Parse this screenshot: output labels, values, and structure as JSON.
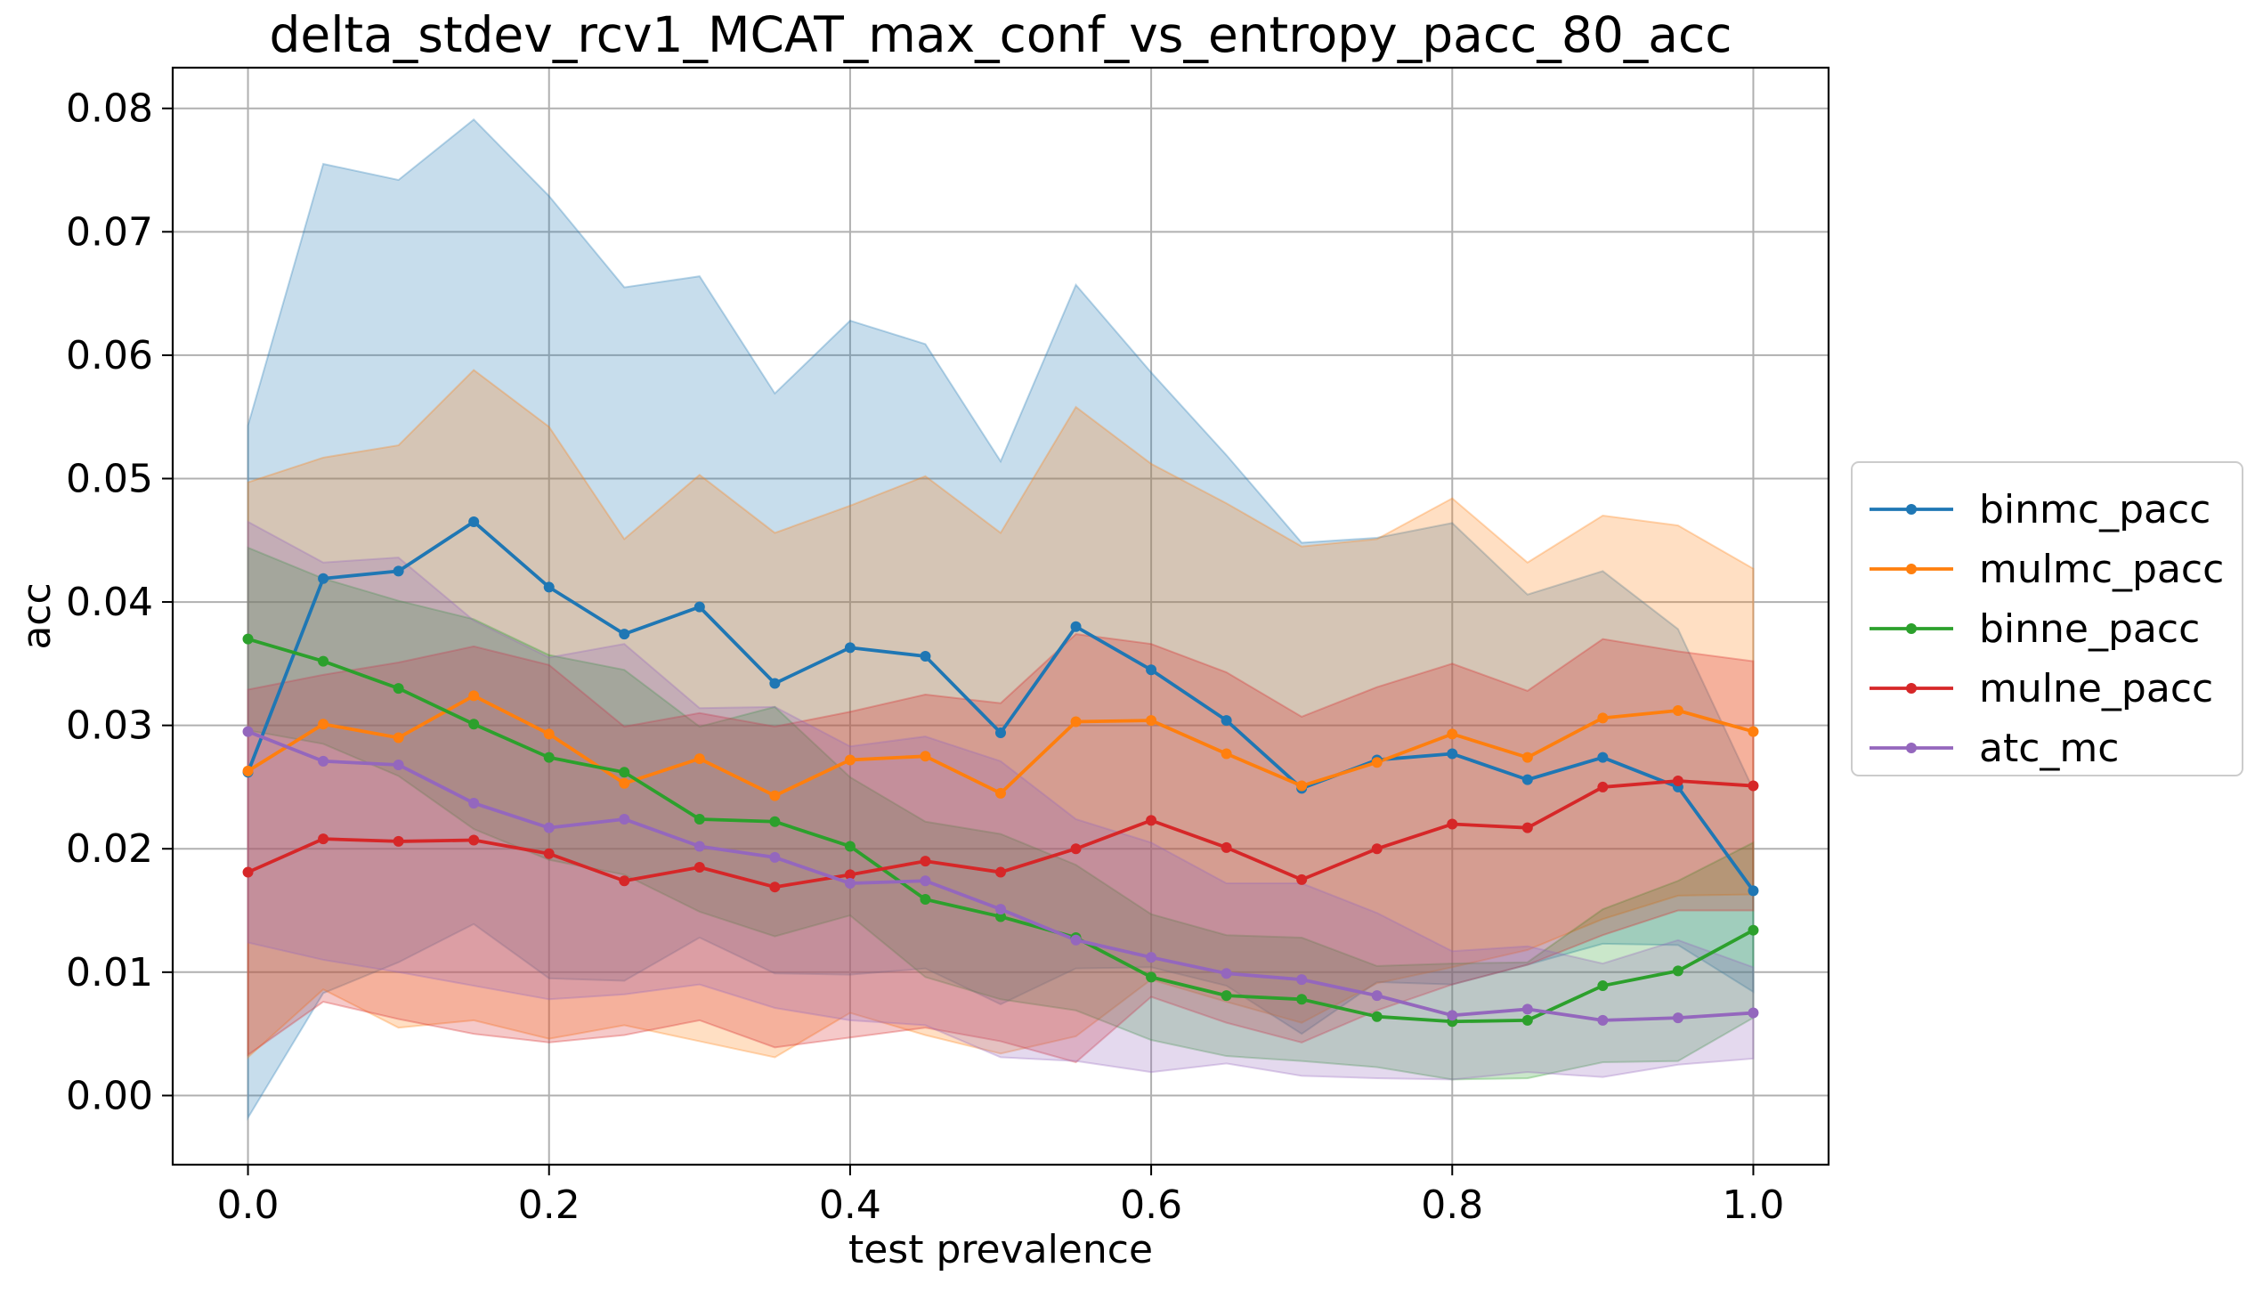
{
  "chart_data": {
    "type": "line",
    "title": "delta_stdev_rcv1_MCAT_max_conf_vs_entropy_pacc_80_acc",
    "xlabel": "test prevalence",
    "ylabel": "acc",
    "xlim": [
      -0.05,
      1.05
    ],
    "ylim": [
      -0.0056,
      0.0833
    ],
    "x_ticks": [
      0.0,
      0.2,
      0.4,
      0.6,
      0.8,
      1.0
    ],
    "x_tick_labels": [
      "0.0",
      "0.2",
      "0.4",
      "0.6",
      "0.8",
      "1.0"
    ],
    "y_ticks": [
      0.0,
      0.01,
      0.02,
      0.03,
      0.04,
      0.05,
      0.06,
      0.07,
      0.08
    ],
    "y_tick_labels": [
      "0.00",
      "0.01",
      "0.02",
      "0.03",
      "0.04",
      "0.05",
      "0.06",
      "0.07",
      "0.08"
    ],
    "grid": true,
    "legend_position": "right-outside",
    "x": [
      0.0,
      0.05,
      0.1,
      0.15,
      0.2,
      0.25,
      0.3,
      0.35,
      0.4,
      0.45,
      0.5,
      0.55,
      0.6,
      0.65,
      0.7,
      0.75,
      0.8,
      0.85,
      0.9,
      0.95,
      1.0
    ],
    "series": [
      {
        "name": "binmc_pacc",
        "color": "#1f77b4",
        "values": [
          0.0262,
          0.0419,
          0.0425,
          0.0465,
          0.0412,
          0.0374,
          0.0396,
          0.0334,
          0.0363,
          0.0356,
          0.0294,
          0.038,
          0.0345,
          0.0304,
          0.0249,
          0.0272,
          0.0277,
          0.0256,
          0.0274,
          0.025,
          0.0166
        ],
        "upper": [
          0.0543,
          0.0755,
          0.0742,
          0.0791,
          0.0729,
          0.0655,
          0.0664,
          0.0569,
          0.0628,
          0.0609,
          0.0514,
          0.0657,
          0.0586,
          0.0519,
          0.0448,
          0.0452,
          0.0464,
          0.0406,
          0.0425,
          0.0378,
          0.0248
        ],
        "lower": [
          -0.0018,
          0.0083,
          0.0108,
          0.0139,
          0.0095,
          0.0093,
          0.0128,
          0.0099,
          0.0098,
          0.0103,
          0.0074,
          0.0103,
          0.0104,
          0.0089,
          0.005,
          0.0092,
          0.009,
          0.0106,
          0.0123,
          0.0122,
          0.0084
        ]
      },
      {
        "name": "mulmc_pacc",
        "color": "#ff7f0e",
        "values": [
          0.0263,
          0.0301,
          0.029,
          0.0324,
          0.0293,
          0.0253,
          0.0273,
          0.0243,
          0.0272,
          0.0275,
          0.0245,
          0.0303,
          0.0304,
          0.0277,
          0.0251,
          0.027,
          0.0293,
          0.0274,
          0.0306,
          0.0312,
          0.0295
        ],
        "upper": [
          0.0497,
          0.0517,
          0.0527,
          0.0588,
          0.0542,
          0.0451,
          0.0503,
          0.0456,
          0.0478,
          0.0502,
          0.0456,
          0.0558,
          0.0512,
          0.048,
          0.0445,
          0.0451,
          0.0484,
          0.0432,
          0.047,
          0.0462,
          0.0427
        ],
        "lower": [
          0.0031,
          0.0086,
          0.0055,
          0.0061,
          0.0046,
          0.0057,
          0.0044,
          0.0031,
          0.0067,
          0.0049,
          0.0034,
          0.0048,
          0.0094,
          0.0076,
          0.0059,
          0.0091,
          0.0104,
          0.0118,
          0.0143,
          0.0162,
          0.0163
        ]
      },
      {
        "name": "binne_pacc",
        "color": "#2ca02c",
        "values": [
          0.037,
          0.0352,
          0.033,
          0.0301,
          0.0274,
          0.0262,
          0.0224,
          0.0222,
          0.0202,
          0.0159,
          0.0145,
          0.0128,
          0.0096,
          0.0081,
          0.0078,
          0.0064,
          0.006,
          0.0061,
          0.0089,
          0.0101,
          0.0134
        ],
        "upper": [
          0.0444,
          0.0419,
          0.0401,
          0.0386,
          0.0357,
          0.0345,
          0.0299,
          0.0315,
          0.0258,
          0.0222,
          0.0212,
          0.0187,
          0.0147,
          0.013,
          0.0128,
          0.0105,
          0.0107,
          0.0108,
          0.0151,
          0.0174,
          0.0205
        ],
        "lower": [
          0.0296,
          0.0285,
          0.0259,
          0.0216,
          0.0191,
          0.0179,
          0.0149,
          0.0129,
          0.0146,
          0.0096,
          0.0078,
          0.0069,
          0.0045,
          0.0032,
          0.0028,
          0.0023,
          0.0013,
          0.0014,
          0.0027,
          0.0028,
          0.0063
        ]
      },
      {
        "name": "mulne_pacc",
        "color": "#d62728",
        "values": [
          0.0181,
          0.0208,
          0.0206,
          0.0207,
          0.0196,
          0.0174,
          0.0185,
          0.0169,
          0.0179,
          0.019,
          0.0181,
          0.02,
          0.0223,
          0.0201,
          0.0175,
          0.02,
          0.022,
          0.0217,
          0.025,
          0.0255,
          0.0251
        ],
        "upper": [
          0.0329,
          0.0341,
          0.0351,
          0.0364,
          0.0349,
          0.0299,
          0.031,
          0.0299,
          0.0311,
          0.0325,
          0.0318,
          0.0374,
          0.0366,
          0.0343,
          0.0307,
          0.0331,
          0.035,
          0.0328,
          0.037,
          0.036,
          0.0352
        ],
        "lower": [
          0.0033,
          0.0076,
          0.0062,
          0.005,
          0.0043,
          0.0049,
          0.0061,
          0.0039,
          0.0047,
          0.0055,
          0.0044,
          0.0027,
          0.008,
          0.0059,
          0.0043,
          0.0069,
          0.009,
          0.0106,
          0.013,
          0.015,
          0.015
        ]
      },
      {
        "name": "atc_mc",
        "color": "#9467bd",
        "values": [
          0.0295,
          0.0271,
          0.0268,
          0.0237,
          0.0217,
          0.0224,
          0.0202,
          0.0193,
          0.0172,
          0.0174,
          0.0151,
          0.0126,
          0.0112,
          0.0099,
          0.0094,
          0.0081,
          0.0065,
          0.007,
          0.0061,
          0.0063,
          0.0067
        ],
        "upper": [
          0.0465,
          0.0432,
          0.0436,
          0.0385,
          0.0355,
          0.0366,
          0.0314,
          0.0315,
          0.0283,
          0.0291,
          0.0271,
          0.0224,
          0.0205,
          0.0172,
          0.0172,
          0.0148,
          0.0117,
          0.0121,
          0.0107,
          0.0126,
          0.0104
        ],
        "lower": [
          0.0124,
          0.011,
          0.01,
          0.0089,
          0.0078,
          0.0082,
          0.009,
          0.0071,
          0.0061,
          0.0057,
          0.0031,
          0.0028,
          0.0019,
          0.0026,
          0.0016,
          0.0014,
          0.0013,
          0.0019,
          0.0015,
          0.0025,
          0.003
        ]
      }
    ]
  }
}
